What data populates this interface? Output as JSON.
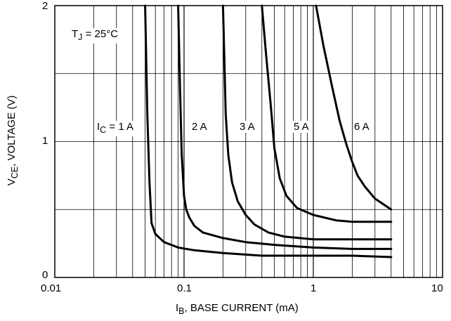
{
  "chart_data": {
    "type": "line",
    "x_scale": "log",
    "xlim": [
      0.01,
      10
    ],
    "ylim": [
      0,
      2
    ],
    "grid": true,
    "x_ticks": [
      "0.01",
      "0.1",
      "1",
      "10"
    ],
    "y_ticks": [
      "0",
      "1",
      "2"
    ],
    "xlabel": {
      "main": "I",
      "sub": "B",
      "rest": ", BASE CURRENT (mA)"
    },
    "ylabel": {
      "main": "V",
      "sub": "CE",
      "rest": ", VOLTAGE (V)"
    },
    "condition": {
      "main": "T",
      "sub": "J",
      "rest": " = 25°C"
    },
    "series": [
      {
        "name": "I_C = 1 A",
        "label_prefix": {
          "main": "I",
          "sub": "C",
          "rest": " = "
        },
        "label": "1 A",
        "x": [
          0.05,
          0.052,
          0.054,
          0.056,
          0.06,
          0.07,
          0.09,
          0.12,
          0.2,
          0.4,
          1.0,
          2.0,
          4.0
        ],
        "y": [
          2.0,
          1.2,
          0.7,
          0.4,
          0.32,
          0.26,
          0.22,
          0.2,
          0.18,
          0.16,
          0.16,
          0.16,
          0.15
        ]
      },
      {
        "name": "I_C = 2 A",
        "label": "2 A",
        "x": [
          0.09,
          0.093,
          0.096,
          0.1,
          0.104,
          0.11,
          0.12,
          0.14,
          0.2,
          0.3,
          0.5,
          1.0,
          2.0,
          4.0
        ],
        "y": [
          2.0,
          1.4,
          0.9,
          0.6,
          0.5,
          0.44,
          0.38,
          0.33,
          0.29,
          0.26,
          0.24,
          0.22,
          0.21,
          0.21
        ]
      },
      {
        "name": "I_C = 3 A",
        "label": "3 A",
        "x": [
          0.2,
          0.205,
          0.21,
          0.22,
          0.235,
          0.26,
          0.3,
          0.35,
          0.45,
          0.6,
          1.0,
          2.0,
          4.0
        ],
        "y": [
          2.0,
          1.6,
          1.2,
          0.9,
          0.7,
          0.56,
          0.46,
          0.39,
          0.33,
          0.3,
          0.28,
          0.28,
          0.28
        ]
      },
      {
        "name": "I_C = 5 A",
        "label": "5 A",
        "x": [
          0.4,
          0.43,
          0.47,
          0.5,
          0.55,
          0.62,
          0.75,
          1.0,
          1.5,
          2.0,
          4.0
        ],
        "y": [
          2.0,
          1.65,
          1.25,
          0.95,
          0.73,
          0.6,
          0.51,
          0.46,
          0.42,
          0.41,
          0.41
        ]
      },
      {
        "name": "I_C = 6 A",
        "label": "6 A",
        "x": [
          1.05,
          1.2,
          1.4,
          1.6,
          1.8,
          2.0,
          2.2,
          2.5,
          3.0,
          4.0
        ],
        "y": [
          2.0,
          1.7,
          1.4,
          1.15,
          0.98,
          0.85,
          0.75,
          0.67,
          0.58,
          0.5
        ]
      }
    ]
  }
}
